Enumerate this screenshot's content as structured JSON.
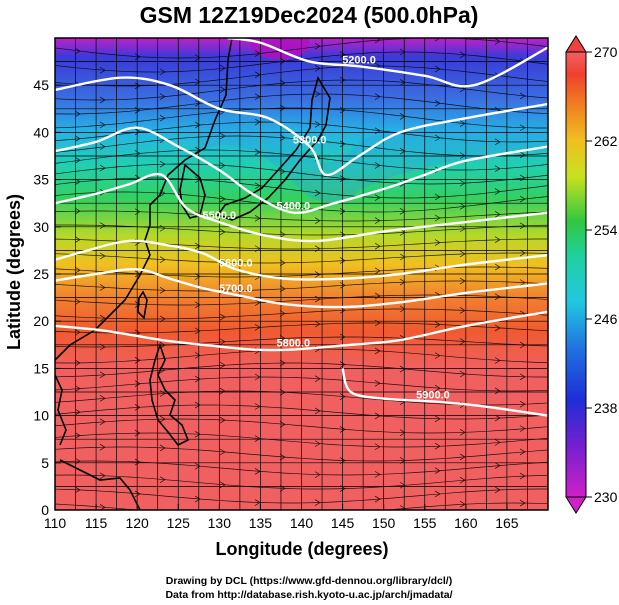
{
  "title": "GSM 12Z19Dec2024 (500.0hPa)",
  "axes": {
    "xlabel": "Longitude (degrees)",
    "ylabel": "Latitude  (degrees)",
    "xticks": [
      "110",
      "115",
      "120",
      "125",
      "130",
      "135",
      "140",
      "145",
      "150",
      "155",
      "160",
      "165"
    ],
    "yticks": [
      "0",
      "5",
      "10",
      "15",
      "20",
      "25",
      "30",
      "35",
      "40",
      "45"
    ],
    "xlim": [
      110,
      170
    ],
    "ylim": [
      0,
      50
    ]
  },
  "colorbar": {
    "labels": [
      "270",
      "262",
      "254",
      "246",
      "238",
      "230"
    ],
    "range": [
      230,
      270
    ],
    "colors": [
      "#c800c8",
      "#1e2fd8",
      "#1fb4e8",
      "#20d29a",
      "#3fcf3a",
      "#d8e020",
      "#f0a020",
      "#f05030",
      "#f06060"
    ]
  },
  "contour_labels": [
    "5200.0",
    "5300.0",
    "5400.0",
    "5500.0",
    "5600.0",
    "5700.0",
    "5800.0",
    "5900.0"
  ],
  "credits": {
    "line1": "Drawing by DCL (https://www.gfd-dennou.org/library/dcl/)",
    "line2": "Data from http://database.rish.kyoto-u.ac.jp/arch/jmadata/"
  },
  "chart_data": {
    "type": "heatmap",
    "title": "GSM 12Z19Dec2024 (500.0hPa)",
    "xlabel": "Longitude (degrees)",
    "ylabel": "Latitude  (degrees)",
    "xlim": [
      110,
      170
    ],
    "ylim": [
      0,
      50
    ],
    "colorbar_range": [
      230,
      270
    ],
    "shaded_field_bands": [
      {
        "lat_from": 45,
        "lat_to": 50,
        "value": 234
      },
      {
        "lat_from": 40,
        "lat_to": 45,
        "value": 240
      },
      {
        "lat_from": 35,
        "lat_to": 40,
        "value": 247
      },
      {
        "lat_from": 30,
        "lat_to": 35,
        "value": 254
      },
      {
        "lat_from": 25,
        "lat_to": 30,
        "value": 260
      },
      {
        "lat_from": 20,
        "lat_to": 25,
        "value": 265
      },
      {
        "lat_from": 0,
        "lat_to": 20,
        "value": 268
      }
    ],
    "contours": [
      {
        "label": "5200.0",
        "points": [
          [
            131,
            50
          ],
          [
            135,
            49.5
          ],
          [
            141,
            47.5
          ],
          [
            147,
            47
          ],
          [
            155,
            46
          ],
          [
            161,
            45
          ],
          [
            170,
            49
          ]
        ]
      },
      {
        "label": "5300.0",
        "points": [
          [
            110,
            44.5
          ],
          [
            118,
            45.8
          ],
          [
            124,
            45
          ],
          [
            130,
            42.5
          ],
          [
            136,
            41.5
          ],
          [
            141,
            38.5
          ],
          [
            143,
            35.5
          ],
          [
            147,
            37.5
          ],
          [
            152,
            40
          ],
          [
            160,
            41.5
          ],
          [
            170,
            43
          ]
        ]
      },
      {
        "label": "5400.0",
        "points": [
          [
            110,
            38
          ],
          [
            115,
            39
          ],
          [
            120,
            40.5
          ],
          [
            125,
            38.5
          ],
          [
            130,
            36
          ],
          [
            134,
            33.5
          ],
          [
            139,
            31.5
          ],
          [
            144,
            32.5
          ],
          [
            150,
            34
          ],
          [
            155,
            35.5
          ],
          [
            160,
            37
          ],
          [
            170,
            38.5
          ]
        ]
      },
      {
        "label": "5500.0",
        "points": [
          [
            110,
            32.5
          ],
          [
            115,
            33.5
          ],
          [
            119,
            34.5
          ],
          [
            123,
            35.5
          ],
          [
            126,
            32
          ],
          [
            130,
            30.5
          ],
          [
            136,
            29
          ],
          [
            142,
            28.5
          ],
          [
            150,
            29.5
          ],
          [
            160,
            30.5
          ],
          [
            170,
            31.5
          ]
        ]
      },
      {
        "label": "5600.0",
        "points": [
          [
            110,
            26.5
          ],
          [
            114,
            27.5
          ],
          [
            119,
            28.5
          ],
          [
            124,
            28
          ],
          [
            128,
            27.2
          ],
          [
            132,
            25.5
          ],
          [
            138,
            24.5
          ],
          [
            145,
            24.5
          ],
          [
            152,
            25
          ],
          [
            160,
            26
          ],
          [
            170,
            27
          ]
        ]
      },
      {
        "label": "5700.0",
        "points": [
          [
            110,
            24.3
          ],
          [
            115,
            25
          ],
          [
            120,
            25.5
          ],
          [
            124,
            24.5
          ],
          [
            128,
            23.5
          ],
          [
            132,
            22.8
          ],
          [
            138,
            21.8
          ],
          [
            145,
            21.5
          ],
          [
            152,
            22
          ],
          [
            160,
            23
          ],
          [
            170,
            24
          ]
        ]
      },
      {
        "label": "5800.0",
        "points": [
          [
            110,
            19.5
          ],
          [
            116,
            19
          ],
          [
            123,
            18
          ],
          [
            128,
            17.5
          ],
          [
            134,
            17
          ],
          [
            139,
            17
          ],
          [
            146,
            17.5
          ],
          [
            152,
            18
          ],
          [
            160,
            19.5
          ],
          [
            170,
            21
          ]
        ]
      },
      {
        "label": "5900.0",
        "points": [
          [
            145,
            15
          ],
          [
            146,
            12.5
          ],
          [
            150,
            11.8
          ],
          [
            156,
            11.5
          ],
          [
            162,
            11
          ],
          [
            170,
            10
          ]
        ]
      }
    ]
  }
}
